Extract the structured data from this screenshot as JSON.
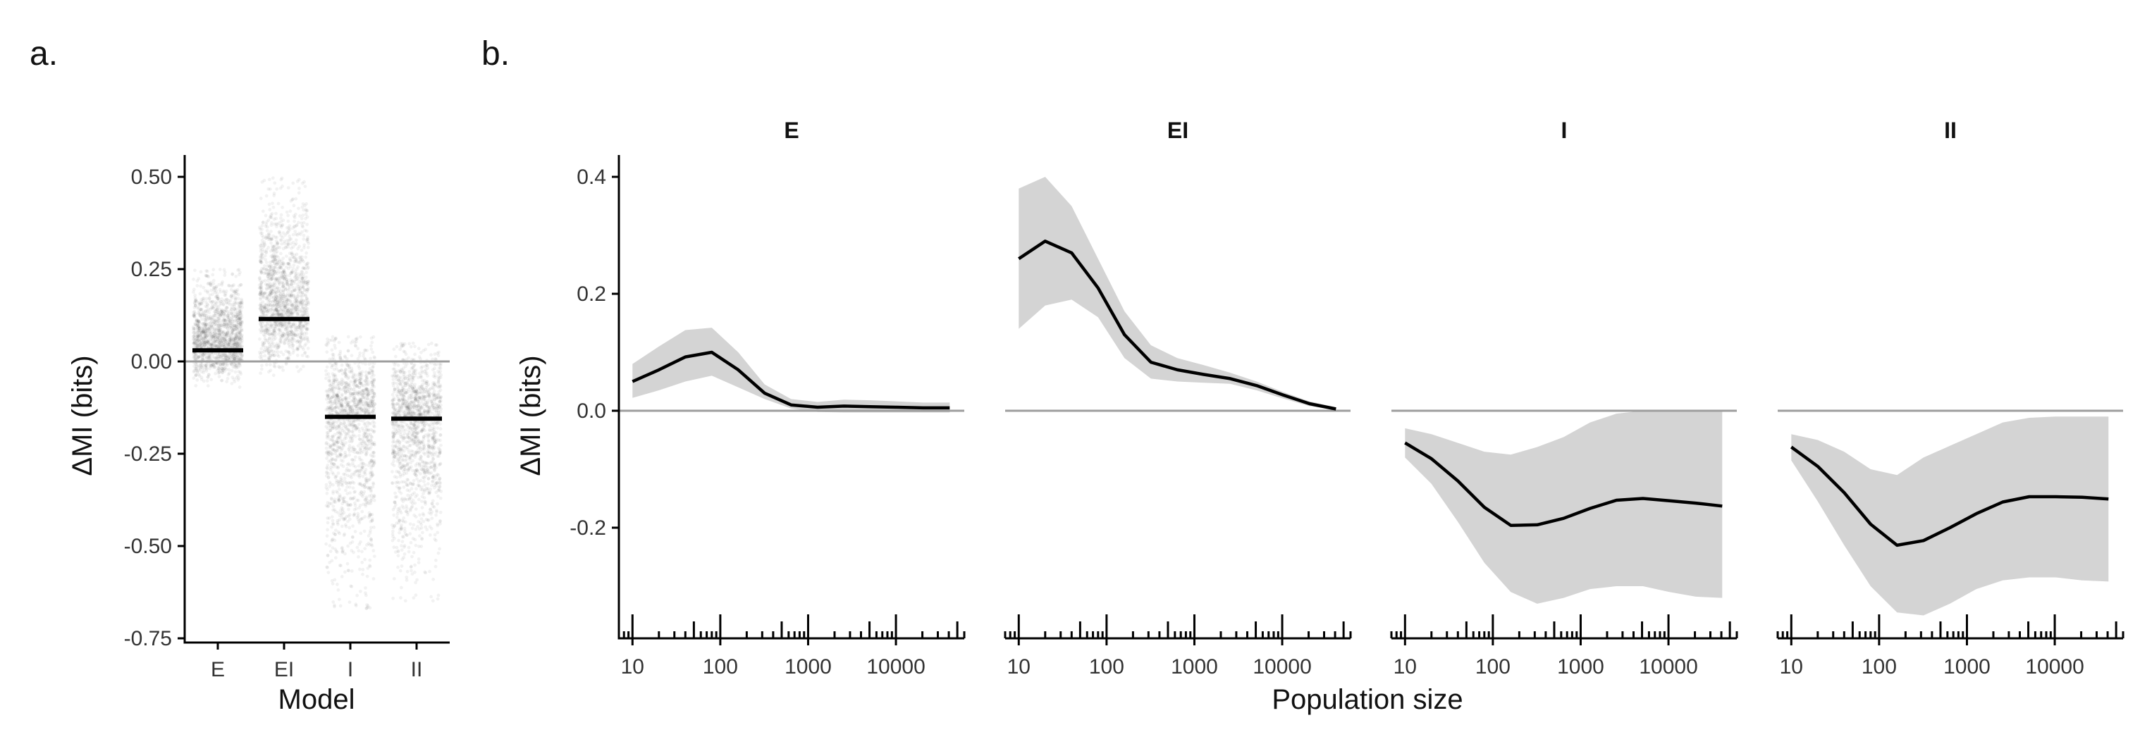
{
  "panel_labels": {
    "a": "a.",
    "b": "b."
  },
  "colors": {
    "axis": "#000000",
    "zero_line": "#9e9e9e",
    "ribbon": "#d4d4d4",
    "line": "#000000",
    "points": "#000000"
  },
  "chart_data": [
    {
      "type": "scatter",
      "subtype": "jittered strip plot with mean bars",
      "xlabel": "Model",
      "ylabel": "ΔMI (bits)",
      "categories": [
        "E",
        "EI",
        "I",
        "II"
      ],
      "ylim": [
        -0.75,
        0.55
      ],
      "yticks": [
        -0.75,
        -0.5,
        -0.25,
        0.0,
        0.25,
        0.5
      ],
      "ytick_labels": [
        "-0.75",
        "-0.50",
        "-0.25",
        "0.00",
        "0.25",
        "0.50"
      ],
      "reference_line": 0,
      "means": [
        0.03,
        0.115,
        -0.15,
        -0.155
      ],
      "point_ranges": [
        [
          -0.07,
          0.25
        ],
        [
          -0.04,
          0.5
        ],
        [
          -0.67,
          0.07
        ],
        [
          -0.65,
          0.05
        ]
      ],
      "grid": false
    },
    {
      "type": "line",
      "subtype": "faceted line with confidence ribbon",
      "xlabel": "Population size",
      "ylabel": "ΔMI (bits)",
      "x_scale": "log",
      "xlim": [
        7,
        60000
      ],
      "xticks": [
        10,
        100,
        1000,
        10000
      ],
      "xtick_labels": [
        "10",
        "100",
        "1000",
        "10000"
      ],
      "ylim": [
        -0.38,
        0.43
      ],
      "yticks": [
        -0.2,
        0.0,
        0.2,
        0.4
      ],
      "ytick_labels": [
        "-0.2",
        "0.0",
        "0.2",
        "0.4"
      ],
      "reference_line": 0,
      "grid": false,
      "facets": [
        {
          "title": "E",
          "x": [
            10,
            20,
            40,
            80,
            160,
            320,
            640,
            1280,
            2560,
            5120,
            10240,
            20480,
            40960
          ],
          "y": [
            0.05,
            0.07,
            0.092,
            0.1,
            0.07,
            0.03,
            0.01,
            0.006,
            0.008,
            0.007,
            0.006,
            0.005,
            0.005
          ],
          "lower": [
            0.022,
            0.035,
            0.05,
            0.06,
            0.04,
            0.02,
            0.004,
            -0.002,
            -0.003,
            -0.003,
            -0.003,
            -0.003,
            -0.003
          ],
          "upper": [
            0.08,
            0.11,
            0.138,
            0.142,
            0.1,
            0.045,
            0.02,
            0.015,
            0.019,
            0.018,
            0.016,
            0.014,
            0.014
          ]
        },
        {
          "title": "EI",
          "x": [
            10,
            20,
            40,
            80,
            160,
            320,
            640,
            1280,
            2560,
            5120,
            10240,
            20480,
            40960
          ],
          "y": [
            0.26,
            0.29,
            0.27,
            0.21,
            0.13,
            0.083,
            0.07,
            0.062,
            0.055,
            0.043,
            0.027,
            0.012,
            0.003
          ],
          "lower": [
            0.14,
            0.18,
            0.19,
            0.16,
            0.09,
            0.055,
            0.05,
            0.048,
            0.046,
            0.035,
            0.021,
            0.008,
            0.001
          ],
          "upper": [
            0.38,
            0.4,
            0.35,
            0.26,
            0.17,
            0.112,
            0.09,
            0.078,
            0.065,
            0.05,
            0.032,
            0.016,
            0.006
          ]
        },
        {
          "title": "I",
          "x": [
            10,
            20,
            40,
            80,
            160,
            320,
            640,
            1280,
            2560,
            5120,
            10240,
            20480,
            40960
          ],
          "y": [
            -0.055,
            -0.082,
            -0.12,
            -0.165,
            -0.196,
            -0.195,
            -0.184,
            -0.167,
            -0.153,
            -0.15,
            -0.154,
            -0.158,
            -0.163
          ],
          "lower": [
            -0.08,
            -0.125,
            -0.19,
            -0.26,
            -0.31,
            -0.33,
            -0.32,
            -0.305,
            -0.3,
            -0.3,
            -0.31,
            -0.318,
            -0.32
          ],
          "upper": [
            -0.03,
            -0.04,
            -0.055,
            -0.07,
            -0.075,
            -0.062,
            -0.045,
            -0.02,
            -0.005,
            0.0,
            0.0,
            0.0,
            0.0
          ]
        },
        {
          "title": "II",
          "x": [
            10,
            20,
            40,
            80,
            160,
            320,
            640,
            1280,
            2560,
            5120,
            10240,
            20480,
            40960
          ],
          "y": [
            -0.062,
            -0.095,
            -0.14,
            -0.194,
            -0.23,
            -0.222,
            -0.2,
            -0.176,
            -0.156,
            -0.147,
            -0.147,
            -0.148,
            -0.151
          ],
          "lower": [
            -0.085,
            -0.155,
            -0.23,
            -0.3,
            -0.345,
            -0.35,
            -0.33,
            -0.305,
            -0.29,
            -0.285,
            -0.285,
            -0.29,
            -0.292
          ],
          "upper": [
            -0.04,
            -0.05,
            -0.07,
            -0.1,
            -0.11,
            -0.08,
            -0.06,
            -0.04,
            -0.02,
            -0.012,
            -0.01,
            -0.01,
            -0.01
          ]
        }
      ]
    }
  ]
}
